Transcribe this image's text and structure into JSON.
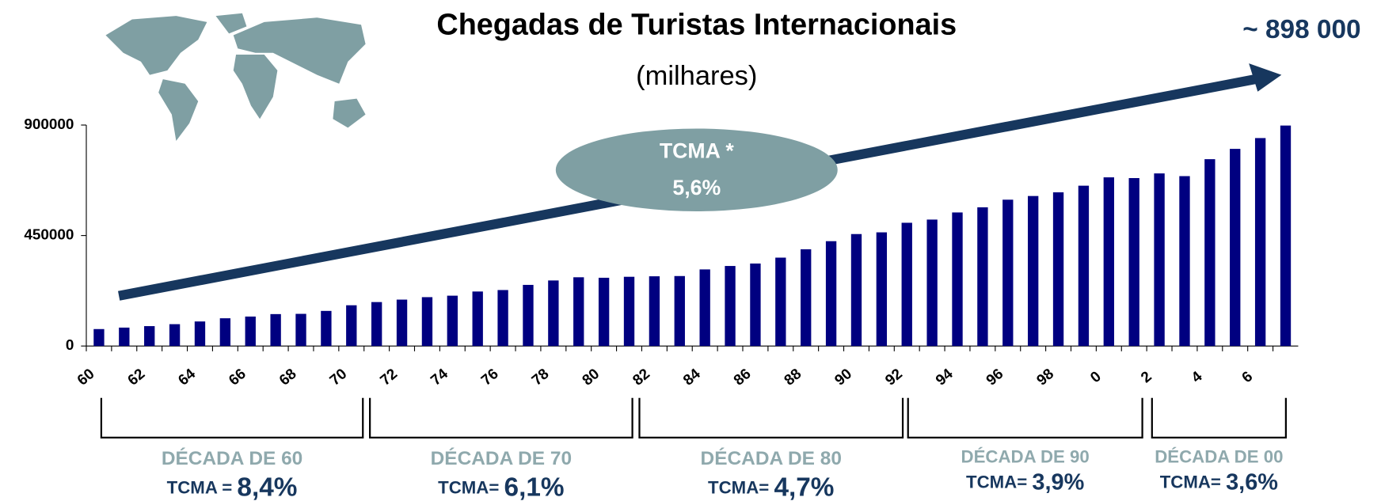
{
  "chart_data": {
    "type": "bar",
    "title": "Chegadas de Turistas Internacionais",
    "subtitle": "(milhares)",
    "end_annotation": "~ 898 000",
    "overall_label": "TCMA *",
    "overall_value": "5,6%",
    "categories": [
      "60",
      null,
      "62",
      null,
      "64",
      null,
      "66",
      null,
      "68",
      null,
      "70",
      null,
      "72",
      null,
      "74",
      null,
      "76",
      null,
      "78",
      null,
      "80",
      null,
      "82",
      null,
      "84",
      null,
      "86",
      null,
      "88",
      null,
      "90",
      null,
      "92",
      null,
      "94",
      null,
      "96",
      null,
      "98",
      null,
      "0",
      null,
      "2",
      null,
      "4",
      null,
      "6",
      null
    ],
    "values": [
      69000,
      75000,
      81000,
      89000,
      100000,
      113000,
      120000,
      130000,
      131000,
      143000,
      166000,
      179000,
      189000,
      199000,
      205000,
      222000,
      228000,
      249000,
      267000,
      280000,
      278000,
      282000,
      284000,
      285000,
      312000,
      326000,
      336000,
      360000,
      394000,
      427000,
      456000,
      463000,
      502000,
      515000,
      544000,
      565000,
      596000,
      611000,
      626000,
      653000,
      687000,
      684000,
      703000,
      692000,
      761000,
      803000,
      847000,
      898000
    ],
    "color": "#000080",
    "ylim": [
      0,
      900000
    ],
    "yticks": [
      0,
      450000,
      900000
    ],
    "decades": [
      {
        "label": "DÉCADA DE 60",
        "tcma_label": "TCMA = ",
        "tcma_value": "8,4%"
      },
      {
        "label": "DÉCADA DE 70",
        "tcma_label": "TCMA= ",
        "tcma_value": "6,1%"
      },
      {
        "label": "DÉCADA DE 80",
        "tcma_label": "TCMA= ",
        "tcma_value": "4,7%"
      },
      {
        "label": "DÉCADA DE 90",
        "tcma_label": "TCMA= ",
        "tcma_value": "3,9%"
      },
      {
        "label": "DÉCADA DE 00",
        "tcma_label": "TCMA= ",
        "tcma_value": "3,6%"
      }
    ]
  }
}
